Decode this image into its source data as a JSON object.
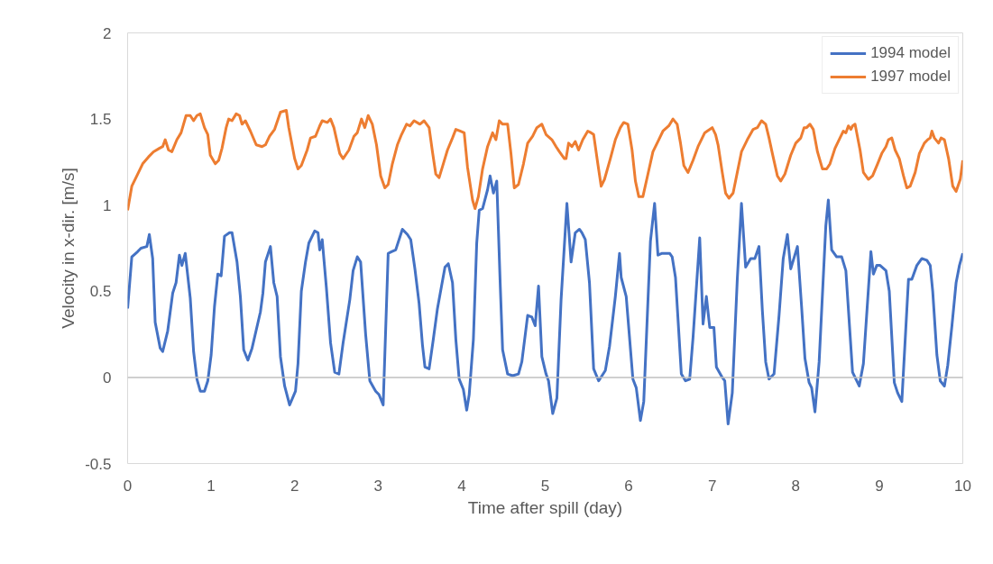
{
  "chart_data": {
    "type": "line",
    "xlabel": "Time after spill (day)",
    "ylabel": "Velocity in x-dir. [m/s]",
    "xlim": [
      0,
      10
    ],
    "xticks": [
      0,
      1,
      2,
      3,
      4,
      5,
      6,
      7,
      8,
      9,
      10
    ],
    "ylim": [
      -0.5,
      2
    ],
    "yticks": [
      {
        "value": -0.5,
        "label": "-0.5"
      },
      0,
      {
        "value": 0.5,
        "label": "0.5"
      },
      1,
      {
        "value": 1.5,
        "label": "1.5"
      },
      2
    ],
    "grid": false,
    "legend": "top right",
    "marker": "none",
    "line_style": "solid",
    "ref_lines": [
      {
        "axis": "y",
        "value": 0,
        "label": null,
        "color": "#bfbfbf"
      }
    ],
    "series": [
      {
        "name": "1994 model",
        "color": "#4472c4",
        "x": [
          0.0,
          0.05,
          0.12,
          0.16,
          0.23,
          0.26,
          0.3,
          0.33,
          0.39,
          0.42,
          0.48,
          0.54,
          0.58,
          0.62,
          0.65,
          0.69,
          0.75,
          0.79,
          0.83,
          0.87,
          0.92,
          0.96,
          1.0,
          1.04,
          1.08,
          1.12,
          1.16,
          1.22,
          1.25,
          1.31,
          1.35,
          1.39,
          1.44,
          1.49,
          1.59,
          1.62,
          1.65,
          1.71,
          1.75,
          1.79,
          1.83,
          1.88,
          1.94,
          2.01,
          2.04,
          2.08,
          2.13,
          2.17,
          2.24,
          2.28,
          2.3,
          2.33,
          2.38,
          2.43,
          2.48,
          2.53,
          2.58,
          2.66,
          2.7,
          2.75,
          2.79,
          2.85,
          2.9,
          2.97,
          3.01,
          3.06,
          3.12,
          3.16,
          3.21,
          3.29,
          3.35,
          3.39,
          3.44,
          3.49,
          3.53,
          3.56,
          3.61,
          3.66,
          3.71,
          3.77,
          3.8,
          3.84,
          3.89,
          3.93,
          3.97,
          4.02,
          4.06,
          4.09,
          4.14,
          4.18,
          4.21,
          4.25,
          4.31,
          4.34,
          4.38,
          4.42,
          4.46,
          4.49,
          4.55,
          4.61,
          4.68,
          4.72,
          4.79,
          4.84,
          4.88,
          4.92,
          4.96,
          5.01,
          5.04,
          5.09,
          5.14,
          5.19,
          5.26,
          5.31,
          5.36,
          5.41,
          5.44,
          5.48,
          5.53,
          5.58,
          5.64,
          5.72,
          5.77,
          5.84,
          5.89,
          5.91,
          5.97,
          6.05,
          6.09,
          6.14,
          6.18,
          6.26,
          6.31,
          6.35,
          6.4,
          6.49,
          6.52,
          6.56,
          6.63,
          6.68,
          6.73,
          6.77,
          6.85,
          6.89,
          6.93,
          6.97,
          7.02,
          7.05,
          7.12,
          7.15,
          7.19,
          7.24,
          7.3,
          7.35,
          7.4,
          7.46,
          7.51,
          7.56,
          7.6,
          7.64,
          7.68,
          7.74,
          7.8,
          7.85,
          7.9,
          7.94,
          8.02,
          8.07,
          8.11,
          8.16,
          8.19,
          8.23,
          8.28,
          8.36,
          8.39,
          8.43,
          8.49,
          8.55,
          8.6,
          8.68,
          8.76,
          8.81,
          8.9,
          8.93,
          8.97,
          9.01,
          9.08,
          9.12,
          9.18,
          9.22,
          9.27,
          9.35,
          9.39,
          9.45,
          9.51,
          9.57,
          9.61,
          9.64,
          9.69,
          9.73,
          9.78,
          9.82,
          9.87,
          9.92,
          9.96,
          10.0
        ],
        "values": [
          0.4,
          0.7,
          0.73,
          0.75,
          0.76,
          0.83,
          0.69,
          0.32,
          0.17,
          0.15,
          0.27,
          0.49,
          0.55,
          0.71,
          0.65,
          0.72,
          0.46,
          0.15,
          -0.01,
          -0.08,
          -0.08,
          -0.02,
          0.13,
          0.41,
          0.6,
          0.59,
          0.82,
          0.84,
          0.84,
          0.67,
          0.47,
          0.16,
          0.1,
          0.17,
          0.38,
          0.49,
          0.67,
          0.76,
          0.55,
          0.47,
          0.12,
          -0.05,
          -0.16,
          -0.08,
          0.08,
          0.5,
          0.67,
          0.78,
          0.85,
          0.84,
          0.74,
          0.8,
          0.52,
          0.2,
          0.03,
          0.02,
          0.2,
          0.45,
          0.62,
          0.7,
          0.67,
          0.25,
          -0.02,
          -0.08,
          -0.1,
          -0.16,
          0.72,
          0.73,
          0.74,
          0.86,
          0.83,
          0.8,
          0.63,
          0.43,
          0.19,
          0.06,
          0.05,
          0.22,
          0.4,
          0.56,
          0.64,
          0.66,
          0.55,
          0.22,
          -0.01,
          -0.07,
          -0.19,
          -0.1,
          0.22,
          0.78,
          0.97,
          0.98,
          1.09,
          1.17,
          1.07,
          1.14,
          0.56,
          0.16,
          0.02,
          0.01,
          0.02,
          0.09,
          0.36,
          0.35,
          0.3,
          0.53,
          0.12,
          0.02,
          -0.02,
          -0.21,
          -0.12,
          0.45,
          1.01,
          0.67,
          0.84,
          0.86,
          0.84,
          0.8,
          0.55,
          0.05,
          -0.02,
          0.04,
          0.18,
          0.47,
          0.72,
          0.58,
          0.47,
          -0.01,
          -0.06,
          -0.25,
          -0.14,
          0.79,
          1.01,
          0.71,
          0.72,
          0.72,
          0.7,
          0.58,
          0.02,
          -0.02,
          -0.01,
          0.23,
          0.81,
          0.31,
          0.47,
          0.29,
          0.29,
          0.06,
          0.0,
          -0.02,
          -0.27,
          -0.09,
          0.57,
          1.01,
          0.64,
          0.69,
          0.69,
          0.76,
          0.39,
          0.09,
          -0.01,
          0.02,
          0.36,
          0.69,
          0.83,
          0.63,
          0.76,
          0.41,
          0.11,
          -0.03,
          -0.06,
          -0.2,
          0.09,
          0.88,
          1.03,
          0.74,
          0.7,
          0.7,
          0.62,
          0.03,
          -0.05,
          0.08,
          0.73,
          0.6,
          0.65,
          0.65,
          0.62,
          0.5,
          -0.03,
          -0.09,
          -0.14,
          0.57,
          0.57,
          0.65,
          0.69,
          0.68,
          0.65,
          0.5,
          0.13,
          -0.02,
          -0.05,
          0.07,
          0.3,
          0.55,
          0.65,
          0.72
        ]
      },
      {
        "name": "1997 model",
        "color": "#ed7d31",
        "x": [
          0.0,
          0.05,
          0.12,
          0.18,
          0.25,
          0.31,
          0.38,
          0.42,
          0.45,
          0.49,
          0.53,
          0.59,
          0.64,
          0.7,
          0.75,
          0.79,
          0.83,
          0.87,
          0.92,
          0.96,
          0.99,
          1.05,
          1.09,
          1.13,
          1.18,
          1.21,
          1.25,
          1.3,
          1.34,
          1.37,
          1.41,
          1.47,
          1.54,
          1.61,
          1.65,
          1.7,
          1.76,
          1.83,
          1.9,
          1.93,
          2.0,
          2.04,
          2.08,
          2.15,
          2.19,
          2.25,
          2.3,
          2.33,
          2.39,
          2.43,
          2.47,
          2.54,
          2.58,
          2.65,
          2.71,
          2.75,
          2.8,
          2.84,
          2.88,
          2.93,
          2.98,
          3.03,
          3.08,
          3.12,
          3.17,
          3.23,
          3.28,
          3.34,
          3.38,
          3.43,
          3.5,
          3.55,
          3.61,
          3.65,
          3.69,
          3.73,
          3.78,
          3.83,
          3.89,
          3.93,
          3.98,
          4.03,
          4.07,
          4.13,
          4.16,
          4.2,
          4.25,
          4.31,
          4.37,
          4.41,
          4.45,
          4.49,
          4.55,
          4.59,
          4.63,
          4.68,
          4.74,
          4.79,
          4.85,
          4.9,
          4.96,
          5.01,
          5.08,
          5.13,
          5.17,
          5.23,
          5.25,
          5.28,
          5.32,
          5.36,
          5.4,
          5.45,
          5.51,
          5.55,
          5.58,
          5.63,
          5.67,
          5.71,
          5.78,
          5.84,
          5.9,
          5.94,
          5.99,
          6.04,
          6.08,
          6.12,
          6.17,
          6.23,
          6.29,
          6.36,
          6.41,
          6.48,
          6.53,
          6.58,
          6.62,
          6.66,
          6.71,
          6.77,
          6.83,
          6.88,
          6.91,
          6.94,
          7.0,
          7.04,
          7.07,
          7.12,
          7.16,
          7.2,
          7.25,
          7.3,
          7.35,
          7.42,
          7.49,
          7.54,
          7.59,
          7.64,
          7.68,
          7.72,
          7.78,
          7.82,
          7.87,
          7.94,
          8.0,
          8.06,
          8.1,
          8.13,
          8.17,
          8.21,
          8.26,
          8.32,
          8.37,
          8.41,
          8.47,
          8.51,
          8.54,
          8.57,
          8.6,
          8.63,
          8.66,
          8.68,
          8.71,
          8.77,
          8.81,
          8.87,
          8.92,
          8.98,
          9.03,
          9.08,
          9.11,
          9.15,
          9.19,
          9.24,
          9.29,
          9.33,
          9.37,
          9.43,
          9.48,
          9.54,
          9.58,
          9.61,
          9.63,
          9.66,
          9.71,
          9.74,
          9.78,
          9.83,
          9.88,
          9.92,
          9.97,
          10.0
        ],
        "values": [
          0.97,
          1.11,
          1.18,
          1.24,
          1.28,
          1.31,
          1.33,
          1.34,
          1.38,
          1.32,
          1.31,
          1.38,
          1.42,
          1.52,
          1.52,
          1.49,
          1.52,
          1.53,
          1.45,
          1.41,
          1.29,
          1.24,
          1.26,
          1.33,
          1.45,
          1.5,
          1.49,
          1.53,
          1.52,
          1.47,
          1.49,
          1.43,
          1.35,
          1.34,
          1.35,
          1.4,
          1.44,
          1.54,
          1.55,
          1.45,
          1.27,
          1.21,
          1.23,
          1.32,
          1.39,
          1.4,
          1.46,
          1.49,
          1.48,
          1.5,
          1.45,
          1.3,
          1.27,
          1.32,
          1.4,
          1.42,
          1.5,
          1.45,
          1.52,
          1.47,
          1.35,
          1.17,
          1.1,
          1.12,
          1.24,
          1.35,
          1.41,
          1.47,
          1.46,
          1.49,
          1.47,
          1.49,
          1.45,
          1.31,
          1.18,
          1.16,
          1.24,
          1.32,
          1.39,
          1.44,
          1.43,
          1.42,
          1.22,
          1.03,
          0.98,
          1.05,
          1.21,
          1.34,
          1.42,
          1.38,
          1.49,
          1.47,
          1.47,
          1.3,
          1.1,
          1.12,
          1.24,
          1.36,
          1.4,
          1.45,
          1.47,
          1.41,
          1.38,
          1.34,
          1.31,
          1.27,
          1.27,
          1.36,
          1.34,
          1.37,
          1.32,
          1.38,
          1.43,
          1.42,
          1.41,
          1.24,
          1.11,
          1.15,
          1.27,
          1.38,
          1.45,
          1.48,
          1.47,
          1.32,
          1.14,
          1.05,
          1.05,
          1.18,
          1.31,
          1.38,
          1.43,
          1.46,
          1.5,
          1.47,
          1.36,
          1.23,
          1.19,
          1.26,
          1.34,
          1.39,
          1.42,
          1.43,
          1.45,
          1.41,
          1.35,
          1.19,
          1.07,
          1.04,
          1.07,
          1.19,
          1.31,
          1.38,
          1.44,
          1.45,
          1.49,
          1.47,
          1.39,
          1.3,
          1.17,
          1.14,
          1.18,
          1.29,
          1.36,
          1.39,
          1.45,
          1.45,
          1.47,
          1.44,
          1.31,
          1.21,
          1.21,
          1.24,
          1.33,
          1.37,
          1.4,
          1.43,
          1.42,
          1.46,
          1.44,
          1.46,
          1.47,
          1.32,
          1.19,
          1.15,
          1.17,
          1.24,
          1.3,
          1.34,
          1.38,
          1.39,
          1.32,
          1.27,
          1.17,
          1.1,
          1.11,
          1.19,
          1.3,
          1.36,
          1.38,
          1.39,
          1.43,
          1.39,
          1.36,
          1.39,
          1.38,
          1.27,
          1.11,
          1.08,
          1.15,
          1.26
        ]
      }
    ]
  }
}
